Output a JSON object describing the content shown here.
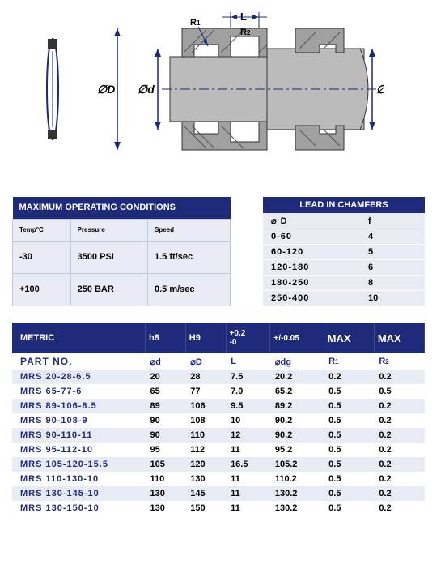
{
  "diagram": {
    "labels": {
      "L": "L",
      "R1": "R1",
      "R2": "R2",
      "phiD": "∅D",
      "phid": "∅d",
      "phidg": "∅dg"
    },
    "colors": {
      "line": "#1a2a7a",
      "fill": "#a0a0a0",
      "hatch": "#666666",
      "arrow": "#1a2a7a"
    }
  },
  "conditions": {
    "title": "MAXIMUM OPERATING CONDITIONS",
    "headers": [
      "Temp°C",
      "Pressure",
      "Speed"
    ],
    "rows": [
      [
        "-30",
        "3500 PSI",
        "1.5 ft/sec"
      ],
      [
        "+100",
        "250 BAR",
        "0.5 m/sec"
      ]
    ]
  },
  "chamfers": {
    "title": "LEAD IN CHAMFERS",
    "headers": [
      "⌀ D",
      "f"
    ],
    "rows": [
      [
        "0-60",
        "4"
      ],
      [
        "60-120",
        "5"
      ],
      [
        "120-180",
        "6"
      ],
      [
        "180-250",
        "8"
      ],
      [
        "250-400",
        "10"
      ]
    ]
  },
  "metric": {
    "title": "METRIC",
    "col_headers": [
      "METRIC",
      "h8",
      "H9",
      "+0.2\n-0",
      "+/-0.05",
      "MAX",
      "MAX"
    ],
    "sym_row": [
      "PART NO.",
      "⌀d",
      "⌀D",
      "L",
      "⌀dg",
      "R1",
      "R2"
    ],
    "rows": [
      [
        "MRS 20-28-6.5",
        "20",
        "28",
        "7.5",
        "20.2",
        "0.2",
        "0.2"
      ],
      [
        "MRS 65-77-6",
        "65",
        "77",
        "7.0",
        "65.2",
        "0.5",
        "0.5"
      ],
      [
        "MRS 89-106-8.5",
        "89",
        "106",
        "9.5",
        "89.2",
        "0.5",
        "0.2"
      ],
      [
        "MRS 90-108-9",
        "90",
        "108",
        "10",
        "90.2",
        "0.5",
        "0.2"
      ],
      [
        "MRS 90-110-11",
        "90",
        "110",
        "12",
        "90.2",
        "0.5",
        "0.2"
      ],
      [
        "MRS 95-112-10",
        "95",
        "112",
        "11",
        "95.2",
        "0.5",
        "0.2"
      ],
      [
        "MRS 105-120-15.5",
        "105",
        "120",
        "16.5",
        "105.2",
        "0.5",
        "0.2"
      ],
      [
        "MRS 110-130-10",
        "110",
        "130",
        "11",
        "110.2",
        "0.5",
        "0.2"
      ],
      [
        "MRS 130-145-10",
        "130",
        "145",
        "11",
        "130.2",
        "0.5",
        "0.2"
      ],
      [
        "MRS 130-150-10",
        "130",
        "150",
        "11",
        "130.2",
        "0.5",
        "0.2"
      ]
    ]
  }
}
